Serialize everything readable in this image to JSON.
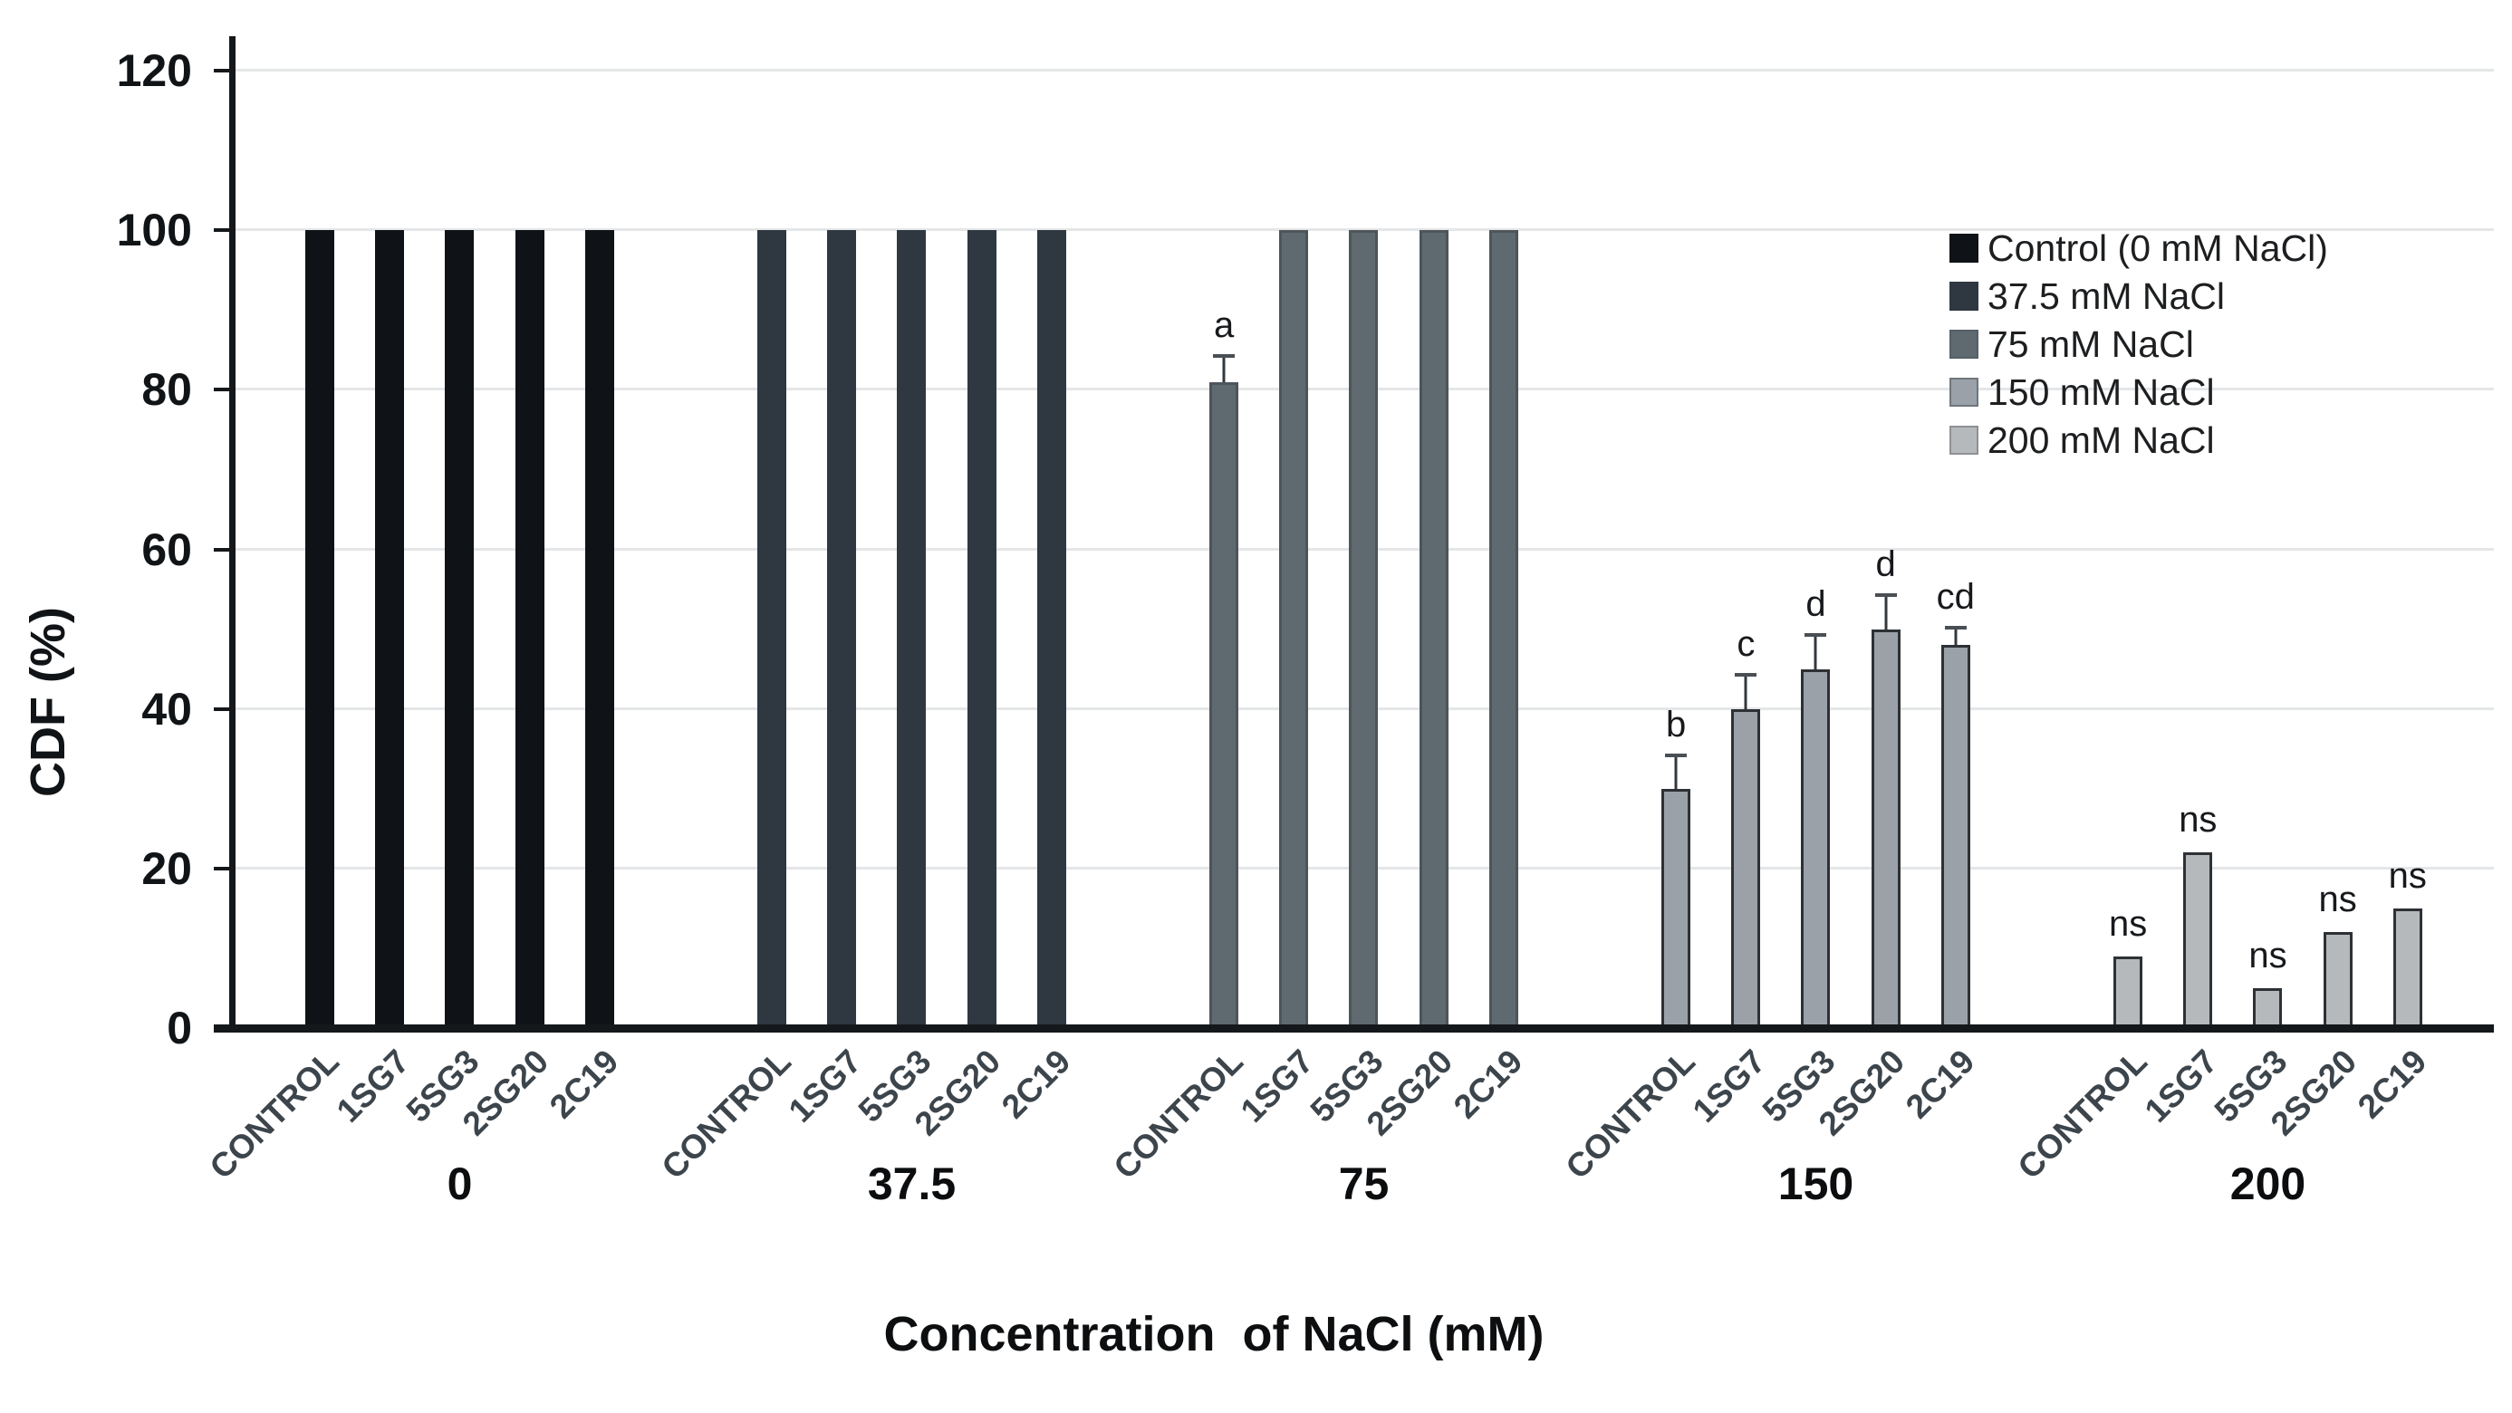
{
  "y_axis": {
    "label": "CDF (%)",
    "tick_labels": [
      "0",
      "20",
      "40",
      "60",
      "80",
      "100",
      "120"
    ]
  },
  "x_axis": {
    "title": "Concentration  of NaCl (mM)"
  },
  "legend": {
    "position": "top-right",
    "items": [
      {
        "label": "Control (0 mM NaCl)",
        "color": "#0f1317",
        "border": "#0f1317"
      },
      {
        "label": "37.5 mM NaCl",
        "color": "#2f3841",
        "border": "#2f3841"
      },
      {
        "label": "75 mM NaCl",
        "color": "#5f6970",
        "border": "#565f66"
      },
      {
        "label": "150 mM NaCl",
        "color": "#9aa1a8",
        "border": "#70767c"
      },
      {
        "label": "200 mM NaCl",
        "color": "#b6b9bc",
        "border": "#8d9094"
      }
    ]
  },
  "chart_data": {
    "type": "bar",
    "title": "",
    "xlabel": "Concentration  of NaCl (mM)",
    "ylabel": "CDF (%)",
    "ylim": [
      0,
      120
    ],
    "y_ticks": [
      0,
      20,
      40,
      60,
      80,
      100,
      120
    ],
    "grid": "horizontal",
    "legend_position": "top-right",
    "bar_categories": [
      "CONTROL",
      "1SG7",
      "5SG3",
      "2SG20",
      "2C19"
    ],
    "groups": [
      {
        "label": "0",
        "legend": "Control (0 mM NaCl)",
        "color": "#0f1317",
        "border_color": "#0f1317",
        "values": [
          100,
          100,
          100,
          100,
          100
        ],
        "errors": [
          0,
          0,
          0,
          0,
          0
        ],
        "annotations": [
          "",
          "",
          "",
          "",
          ""
        ]
      },
      {
        "label": "37.5",
        "legend": "37.5 mM NaCl",
        "color": "#2f3841",
        "border_color": "#2f3841",
        "values": [
          100,
          100,
          100,
          100,
          100
        ],
        "errors": [
          0,
          0,
          0,
          0,
          0
        ],
        "annotations": [
          "",
          "",
          "",
          "",
          ""
        ]
      },
      {
        "label": "75",
        "legend": "75 mM NaCl",
        "color": "#5f6970",
        "border_color": "#4d555b",
        "values": [
          81,
          100,
          100,
          100,
          100
        ],
        "errors": [
          3,
          0,
          0,
          0,
          0
        ],
        "annotations": [
          "a",
          "",
          "",
          "",
          ""
        ]
      },
      {
        "label": "150",
        "legend": "150 mM NaCl",
        "color": "#9aa1a8",
        "border_color": "#2d3135",
        "values": [
          30,
          40,
          45,
          50,
          48
        ],
        "errors": [
          4,
          4,
          4,
          4,
          2
        ],
        "annotations": [
          "b",
          "c",
          "d",
          "d",
          "cd"
        ]
      },
      {
        "label": "200",
        "legend": "200 mM NaCl",
        "color": "#b6b9bc",
        "border_color": "#2d3135",
        "values": [
          9,
          22,
          5,
          12,
          15
        ],
        "errors": [
          0,
          0,
          0,
          0,
          0
        ],
        "annotations": [
          "ns",
          "ns",
          "ns",
          "ns",
          "ns"
        ]
      }
    ]
  }
}
